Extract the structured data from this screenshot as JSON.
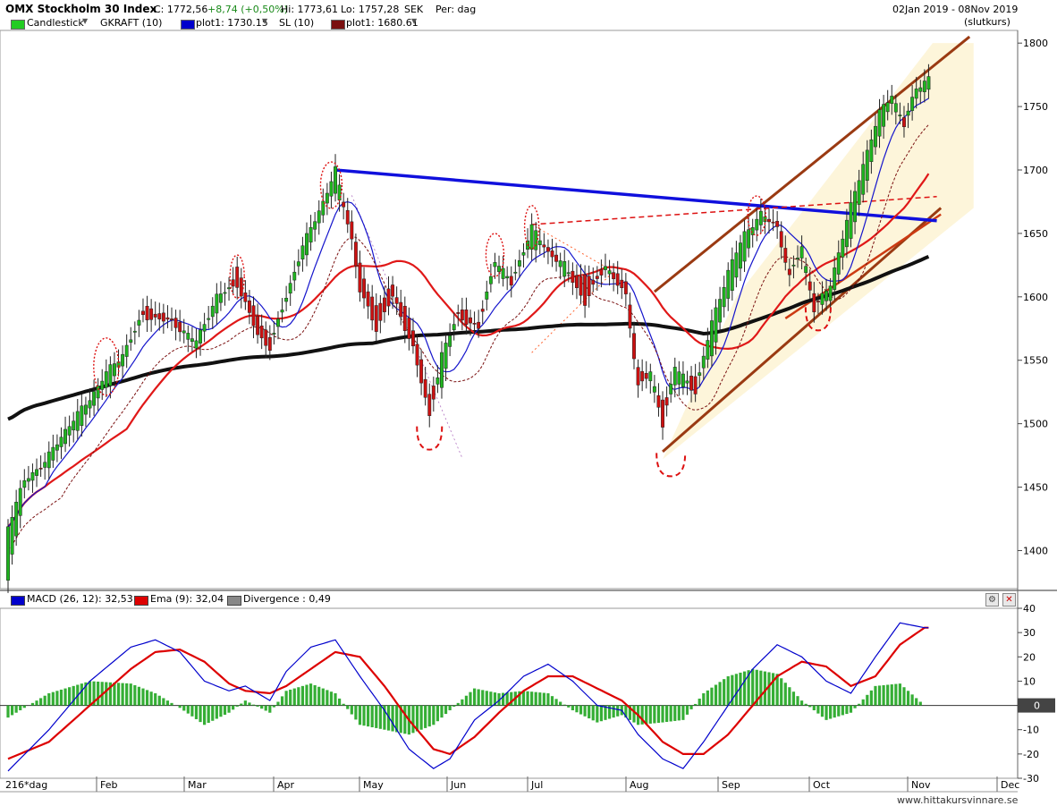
{
  "header": {
    "title": "OMX Stockholm 30 Index",
    "close": "C: 1772,56",
    "change": "+8,74 (+0,50%)",
    "high": "Hi: 1773,61",
    "low": "Lo: 1757,28",
    "currency": "SEK",
    "period": "Per: dag",
    "date_range": "02Jan 2019 - 08Nov 2019",
    "price_type": "(slutkurs)"
  },
  "legend": {
    "items": [
      {
        "label": "Candlestick",
        "color": "#22cc22"
      },
      {
        "label": "GKRAFT (10)",
        "color": null
      },
      {
        "label": "plot1: 1730.15",
        "color": "#0000cc"
      },
      {
        "label": "SL (10)",
        "color": null
      },
      {
        "label": "plot1: 1680.61",
        "color": "#7a1010"
      }
    ]
  },
  "macd_legend": {
    "items": [
      {
        "label": "MACD (26, 12): 32,53",
        "color": "#0000cc"
      },
      {
        "label": "Ema (9): 32,04",
        "color": "#dd0000"
      },
      {
        "label": "Divergence : 0,49",
        "color": "#888888"
      }
    ]
  },
  "footer": {
    "bars_label": "216*dag",
    "watermark": "www.hittakursvinnare.se"
  },
  "chart_data": [
    {
      "type": "candlestick",
      "title": "OMX Stockholm 30 Index",
      "ylim": [
        1370,
        1810
      ],
      "yticks": [
        1400,
        1450,
        1500,
        1550,
        1600,
        1650,
        1700,
        1750,
        1800
      ],
      "x_months": [
        "Feb",
        "Mar",
        "Apr",
        "May",
        "Jun",
        "Jul",
        "Aug",
        "Sep",
        "Oct",
        "Nov",
        "Dec"
      ],
      "anchors": [
        [
          0,
          1375,
          1420
        ],
        [
          4,
          1450,
          1455
        ],
        [
          9,
          1465,
          1470
        ],
        [
          14,
          1485,
          1495
        ],
        [
          20,
          1510,
          1520
        ],
        [
          24,
          1530,
          1540
        ],
        [
          28,
          1545,
          1555
        ],
        [
          33,
          1590,
          1585
        ],
        [
          40,
          1585,
          1580
        ],
        [
          46,
          1560,
          1565
        ],
        [
          51,
          1590,
          1600
        ],
        [
          56,
          1620,
          1610
        ],
        [
          61,
          1585,
          1570
        ],
        [
          64,
          1565,
          1560
        ],
        [
          68,
          1595,
          1600
        ],
        [
          72,
          1630,
          1640
        ],
        [
          77,
          1665,
          1675
        ],
        [
          80,
          1685,
          1700
        ],
        [
          84,
          1660,
          1645
        ],
        [
          86,
          1625,
          1605
        ],
        [
          90,
          1590,
          1575
        ],
        [
          94,
          1610,
          1600
        ],
        [
          99,
          1575,
          1560
        ],
        [
          103,
          1525,
          1505
        ],
        [
          106,
          1530,
          1555
        ],
        [
          110,
          1590,
          1585
        ],
        [
          115,
          1580,
          1575
        ],
        [
          119,
          1620,
          1630
        ],
        [
          123,
          1615,
          1610
        ],
        [
          128,
          1640,
          1655
        ],
        [
          132,
          1640,
          1635
        ],
        [
          136,
          1620,
          1625
        ],
        [
          141,
          1615,
          1595
        ],
        [
          146,
          1620,
          1625
        ],
        [
          151,
          1615,
          1600
        ],
        [
          154,
          1545,
          1530
        ],
        [
          157,
          1535,
          1540
        ],
        [
          160,
          1515,
          1500
        ],
        [
          163,
          1530,
          1545
        ],
        [
          168,
          1535,
          1525
        ],
        [
          172,
          1555,
          1580
        ],
        [
          176,
          1600,
          1620
        ],
        [
          180,
          1630,
          1650
        ],
        [
          184,
          1660,
          1665
        ],
        [
          188,
          1660,
          1655
        ],
        [
          191,
          1625,
          1615
        ],
        [
          194,
          1630,
          1640
        ],
        [
          197,
          1600,
          1590
        ],
        [
          201,
          1595,
          1610
        ],
        [
          205,
          1640,
          1660
        ],
        [
          209,
          1680,
          1705
        ],
        [
          213,
          1730,
          1745
        ],
        [
          216,
          1750,
          1760
        ],
        [
          219,
          1740,
          1735
        ],
        [
          222,
          1755,
          1765
        ],
        [
          225,
          1765,
          1772.56
        ]
      ],
      "overlays": [
        {
          "name": "GKRAFT (10)",
          "color": "#0000cc",
          "value": 1730.15
        },
        {
          "name": "SL (10)",
          "color": "#7a1010",
          "value": 1680.61
        }
      ]
    },
    {
      "type": "line",
      "title": "MACD (26, 12)",
      "ylim": [
        -30,
        40
      ],
      "yticks": [
        -30,
        -20,
        -10,
        0,
        10,
        20,
        30,
        40
      ],
      "series": [
        {
          "name": "MACD (26, 12)",
          "color": "#0000cc",
          "last": 32.53,
          "points": [
            [
              0,
              -27
            ],
            [
              10,
              -10
            ],
            [
              20,
              10
            ],
            [
              30,
              24
            ],
            [
              36,
              27
            ],
            [
              42,
              22
            ],
            [
              48,
              10
            ],
            [
              54,
              6
            ],
            [
              58,
              8
            ],
            [
              64,
              2
            ],
            [
              68,
              14
            ],
            [
              74,
              24
            ],
            [
              80,
              27
            ],
            [
              86,
              12
            ],
            [
              92,
              -2
            ],
            [
              98,
              -18
            ],
            [
              104,
              -26
            ],
            [
              108,
              -22
            ],
            [
              114,
              -6
            ],
            [
              120,
              2
            ],
            [
              126,
              12
            ],
            [
              132,
              17
            ],
            [
              138,
              10
            ],
            [
              144,
              0
            ],
            [
              150,
              -2
            ],
            [
              154,
              -12
            ],
            [
              160,
              -22
            ],
            [
              165,
              -26
            ],
            [
              170,
              -15
            ],
            [
              176,
              0
            ],
            [
              182,
              15
            ],
            [
              188,
              25
            ],
            [
              194,
              20
            ],
            [
              200,
              10
            ],
            [
              206,
              5
            ],
            [
              212,
              20
            ],
            [
              218,
              34
            ],
            [
              224,
              32
            ]
          ]
        },
        {
          "name": "Ema (9)",
          "color": "#dd0000",
          "last": 32.04,
          "points": [
            [
              0,
              -22
            ],
            [
              10,
              -15
            ],
            [
              20,
              0
            ],
            [
              30,
              15
            ],
            [
              36,
              22
            ],
            [
              42,
              23
            ],
            [
              48,
              18
            ],
            [
              54,
              9
            ],
            [
              58,
              6
            ],
            [
              64,
              5
            ],
            [
              68,
              8
            ],
            [
              74,
              15
            ],
            [
              80,
              22
            ],
            [
              86,
              20
            ],
            [
              92,
              8
            ],
            [
              98,
              -6
            ],
            [
              104,
              -18
            ],
            [
              108,
              -20
            ],
            [
              114,
              -13
            ],
            [
              120,
              -3
            ],
            [
              126,
              6
            ],
            [
              132,
              12
            ],
            [
              138,
              12
            ],
            [
              144,
              7
            ],
            [
              150,
              2
            ],
            [
              154,
              -4
            ],
            [
              160,
              -15
            ],
            [
              165,
              -20
            ],
            [
              170,
              -20
            ],
            [
              176,
              -12
            ],
            [
              182,
              0
            ],
            [
              188,
              12
            ],
            [
              194,
              18
            ],
            [
              200,
              16
            ],
            [
              206,
              8
            ],
            [
              212,
              12
            ],
            [
              218,
              25
            ],
            [
              224,
              32
            ]
          ]
        }
      ]
    }
  ]
}
